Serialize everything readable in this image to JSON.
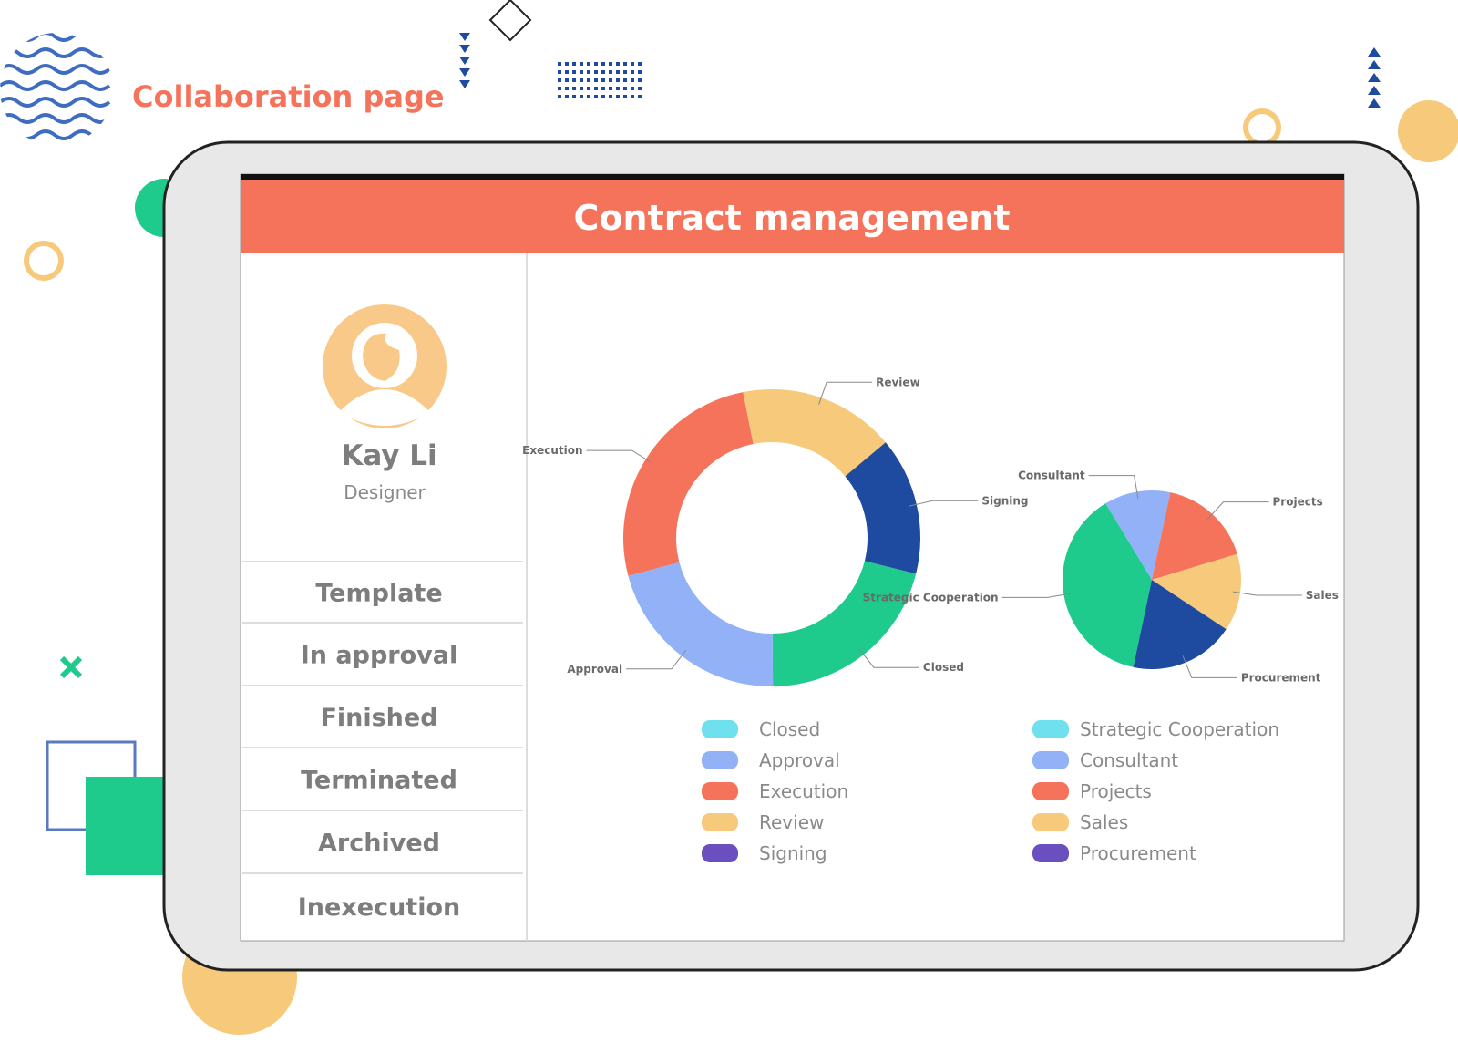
{
  "header": {
    "title": "Collaboration page"
  },
  "app": {
    "title": "Contract management"
  },
  "profile": {
    "name": "Kay Li",
    "role": "Designer"
  },
  "menu": [
    "Template",
    "In approval",
    "Finished",
    "Terminated",
    "Archived",
    "Inexecution"
  ],
  "chart_data": [
    {
      "type": "donut",
      "categories": [
        "Closed",
        "Approval",
        "Execution",
        "Review",
        "Signing"
      ],
      "values": [
        21,
        21,
        26,
        17,
        15
      ],
      "colors": [
        "#1ecb8c",
        "#93b1f7",
        "#f4735a",
        "#f6c97b",
        "#1e4aa0"
      ],
      "legend_colors": [
        "#6fe0ee",
        "#93b1f7",
        "#f4735a",
        "#f6c97b",
        "#6a4fbf"
      ]
    },
    {
      "type": "pie",
      "categories": [
        "Strategic Cooperation",
        "Consultant",
        "Projects",
        "Sales",
        "Procurement"
      ],
      "values": [
        38,
        12,
        17,
        14,
        19
      ],
      "colors": [
        "#1ecb8c",
        "#93b1f7",
        "#f4735a",
        "#f6c97b",
        "#1e4aa0"
      ],
      "legend_colors": [
        "#6fe0ee",
        "#93b1f7",
        "#f4735a",
        "#f6c97b",
        "#6a4fbf"
      ]
    }
  ]
}
